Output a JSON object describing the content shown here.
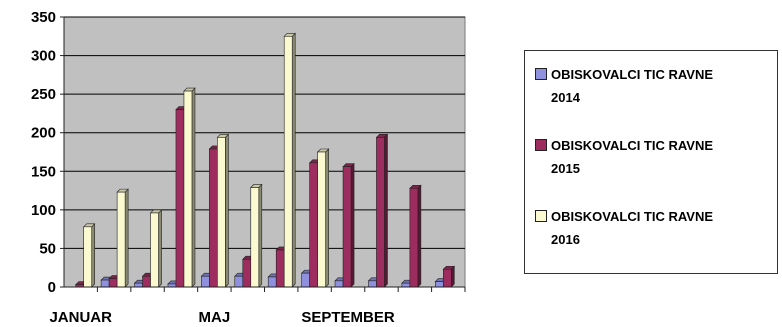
{
  "chart_data": {
    "type": "bar",
    "title": "",
    "xlabel": "",
    "ylabel": "",
    "ylim": [
      0,
      350
    ],
    "y_ticks": [
      "0",
      "50",
      "100",
      "150",
      "200",
      "250",
      "300",
      "350"
    ],
    "grid": true,
    "legend_position": "right",
    "categories": [
      "JANUAR",
      "",
      "",
      "",
      "MAJ",
      "",
      "",
      "",
      "SEPTEMBER",
      "",
      "",
      ""
    ],
    "series": [
      {
        "name": "OBISKOVALCI TIC RAVNE 2014",
        "color": "#8f90de",
        "values": [
          0,
          9,
          5,
          4,
          14,
          14,
          13,
          18,
          8,
          8,
          5,
          7
        ]
      },
      {
        "name": "OBISKOVALCI TIC RAVNE 2015",
        "color": "#9c2d5e",
        "values": [
          3,
          11,
          14,
          230,
          179,
          36,
          48,
          161,
          156,
          194,
          128,
          23
        ]
      },
      {
        "name": "OBISKOVALCI TIC RAVNE 2016",
        "color": "#fbf9cf",
        "values": [
          78,
          123,
          96,
          254,
          194,
          129,
          325,
          175,
          0,
          0,
          0,
          0
        ]
      }
    ]
  },
  "legend": {
    "items": [
      {
        "label": "OBISKOVALCI TIC RAVNE\n2014",
        "color": "#8f90de"
      },
      {
        "label": "OBISKOVALCI TIC RAVNE\n2015",
        "color": "#9c2d5e"
      },
      {
        "label": "OBISKOVALCI TIC RAVNE\n2016",
        "color": "#fbf9cf"
      }
    ]
  }
}
